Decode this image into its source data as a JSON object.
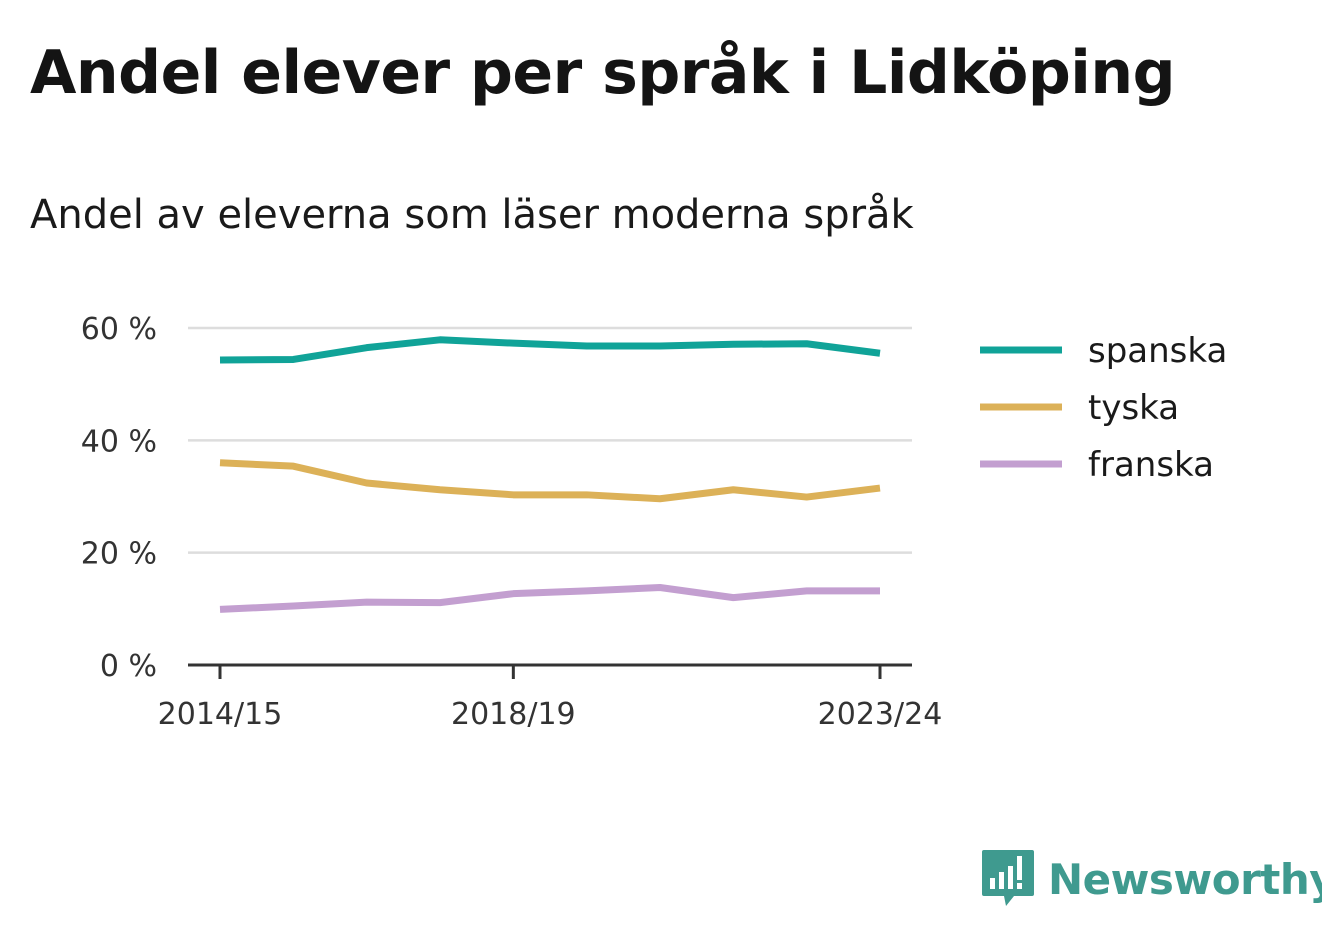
{
  "title": "Andel elever per språk i Lidköping",
  "subtitle": "Andel av eleverna som läser moderna språk",
  "brand": {
    "name": "Newsworthy",
    "icon": "newsworthy-logo-icon"
  },
  "chart_data": {
    "type": "line",
    "x": [
      "2014/15",
      "2015/16",
      "2016/17",
      "2017/18",
      "2018/19",
      "2019/20",
      "2020/21",
      "2021/22",
      "2022/23",
      "2023/24"
    ],
    "xticks": [
      "2014/15",
      "2018/19",
      "2023/24"
    ],
    "yticks": [
      0,
      20,
      40,
      60
    ],
    "ytick_labels": [
      "0 %",
      "20 %",
      "40 %",
      "60 %"
    ],
    "ylim": [
      0,
      60
    ],
    "grid": true,
    "legend_position": "right",
    "series": [
      {
        "name": "spanska",
        "color": "#10a398",
        "values": [
          54.3,
          54.4,
          56.5,
          57.9,
          57.3,
          56.8,
          56.8,
          57.1,
          57.2,
          55.5
        ]
      },
      {
        "name": "tyska",
        "color": "#dcb158",
        "values": [
          36.0,
          35.4,
          32.4,
          31.2,
          30.3,
          30.3,
          29.6,
          31.2,
          29.9,
          31.5
        ]
      },
      {
        "name": "franska",
        "color": "#c39fd0",
        "values": [
          9.9,
          10.5,
          11.2,
          11.1,
          12.7,
          13.2,
          13.8,
          12.0,
          13.2,
          13.2
        ]
      }
    ]
  }
}
